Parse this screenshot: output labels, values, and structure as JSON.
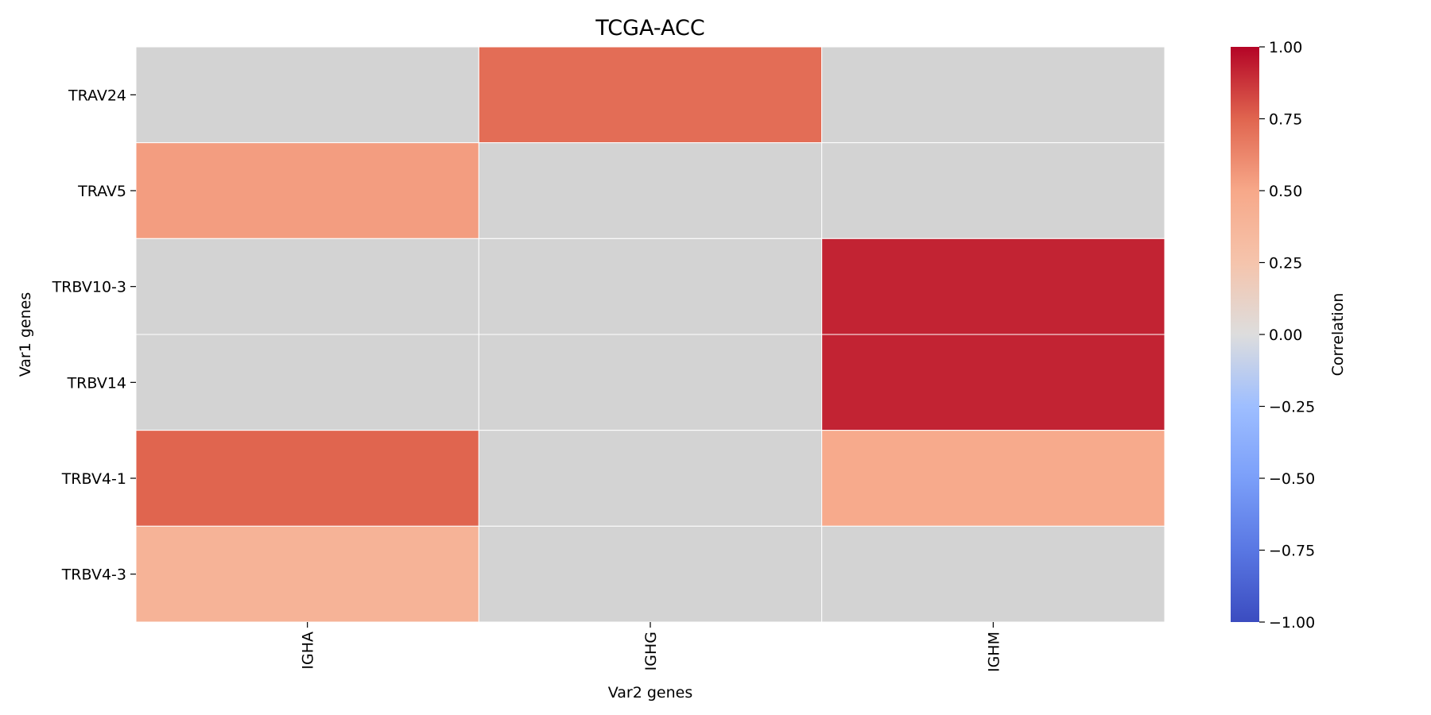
{
  "chart_data": {
    "type": "heatmap",
    "title": "TCGA-ACC",
    "xlabel": "Var2 genes",
    "ylabel": "Var1 genes",
    "x_categories": [
      "IGHA",
      "IGHG",
      "IGHM"
    ],
    "y_categories": [
      "TRAV24",
      "TRAV5",
      "TRBV10-3",
      "TRBV14",
      "TRBV4-1",
      "TRBV4-3"
    ],
    "values": [
      [
        null,
        0.72,
        null
      ],
      [
        0.54,
        null,
        null
      ],
      [
        null,
        null,
        0.92
      ],
      [
        null,
        null,
        0.92
      ],
      [
        0.75,
        null,
        0.48
      ],
      [
        0.4,
        null,
        null
      ]
    ],
    "missing_color": "#d3d3d3",
    "colormap": "coolwarm",
    "colorbar": {
      "label": "Correlation",
      "vmin": -1.0,
      "vmax": 1.0,
      "ticks": [
        1.0,
        0.75,
        0.5,
        0.25,
        0.0,
        -0.25,
        -0.5,
        -0.75,
        -1.0
      ],
      "tick_labels": [
        "1.00",
        "0.75",
        "0.50",
        "0.25",
        "0.00",
        "−0.25",
        "−0.50",
        "−0.75",
        "−1.00"
      ]
    },
    "colormap_stops": [
      {
        "v": -1.0,
        "color": "#3b4cc0"
      },
      {
        "v": -0.75,
        "color": "#5977e3"
      },
      {
        "v": -0.5,
        "color": "#7b9ff9"
      },
      {
        "v": -0.25,
        "color": "#9ebeff"
      },
      {
        "v": 0.0,
        "color": "#dddddd"
      },
      {
        "v": 0.25,
        "color": "#f5c4ac"
      },
      {
        "v": 0.5,
        "color": "#f7a889"
      },
      {
        "v": 0.75,
        "color": "#e0654f"
      },
      {
        "v": 1.0,
        "color": "#b40426"
      }
    ]
  }
}
